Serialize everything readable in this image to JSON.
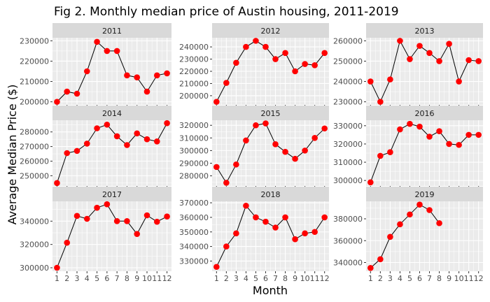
{
  "chart_data": {
    "type": "line",
    "title": "Fig 2. Monthly median price of Austin housing, 2011-2019",
    "xlabel": "Month",
    "ylabel": "Average Median Price ($)",
    "x": [
      1,
      2,
      3,
      4,
      5,
      6,
      7,
      8,
      9,
      10,
      11,
      12
    ],
    "x_ticks": [
      "1",
      "2",
      "3",
      "4",
      "5",
      "6",
      "7",
      "8",
      "9",
      "10",
      "11",
      "12"
    ],
    "grid": true,
    "facets": "3x3",
    "colors": {
      "panel_bg": "#ebebeb",
      "strip_bg": "#d9d9d9",
      "grid": "#ffffff",
      "point": "#ff0000",
      "line": "#000000"
    },
    "panels": [
      {
        "name": "2011",
        "values": [
          200000,
          205000,
          204000,
          215000,
          229500,
          225000,
          225000,
          213000,
          212000,
          205000,
          213000,
          214000
        ],
        "ylim": [
          198500,
          231500
        ],
        "yticks": [
          200000,
          210000,
          220000,
          230000
        ]
      },
      {
        "name": "2012",
        "values": [
          195000,
          210500,
          227000,
          240000,
          245000,
          240000,
          230000,
          235000,
          220000,
          226000,
          225000,
          235000
        ],
        "ylim": [
          192500,
          247500
        ],
        "yticks": [
          200000,
          210000,
          220000,
          230000,
          240000
        ]
      },
      {
        "name": "2013",
        "values": [
          240000,
          230000,
          241000,
          260000,
          251000,
          257500,
          254000,
          250000,
          258500,
          240000,
          250500,
          250000
        ],
        "ylim": [
          228500,
          261500
        ],
        "yticks": [
          230000,
          240000,
          250000,
          260000
        ]
      },
      {
        "name": "2014",
        "values": [
          245000,
          265500,
          267000,
          272000,
          282500,
          285000,
          277000,
          271000,
          279000,
          275000,
          273500,
          286000
        ],
        "ylim": [
          243000,
          288000
        ],
        "yticks": [
          250000,
          260000,
          270000,
          280000
        ]
      },
      {
        "name": "2015",
        "values": [
          287000,
          274500,
          289000,
          308000,
          320000,
          321500,
          305000,
          299000,
          293500,
          300000,
          310000,
          317500
        ],
        "ylim": [
          272000,
          324000
        ],
        "yticks": [
          280000,
          290000,
          300000,
          310000,
          320000
        ]
      },
      {
        "name": "2016",
        "values": [
          299000,
          313500,
          315500,
          328000,
          331000,
          329500,
          324000,
          327000,
          320000,
          319500,
          325000,
          325000
        ],
        "ylim": [
          297000,
          333000
        ],
        "yticks": [
          300000,
          310000,
          320000,
          330000
        ]
      },
      {
        "name": "2017",
        "values": [
          300000,
          321500,
          344500,
          342000,
          351500,
          354500,
          340000,
          340000,
          329000,
          345000,
          339500,
          344000
        ],
        "ylim": [
          297000,
          357000
        ],
        "yticks": [
          300000,
          320000,
          340000
        ]
      },
      {
        "name": "2018",
        "values": [
          326000,
          340000,
          349000,
          368000,
          360000,
          357000,
          353000,
          360000,
          345000,
          349000,
          350000,
          360000
        ],
        "ylim": [
          323000,
          371000
        ],
        "yticks": [
          330000,
          340000,
          350000,
          360000,
          370000
        ]
      },
      {
        "name": "2019",
        "values": [
          335000,
          343000,
          363500,
          375000,
          384000,
          393000,
          388000,
          376000,
          null,
          null,
          null,
          null
        ],
        "ylim": [
          332000,
          396000
        ],
        "yticks": [
          340000,
          360000,
          380000
        ]
      }
    ]
  }
}
